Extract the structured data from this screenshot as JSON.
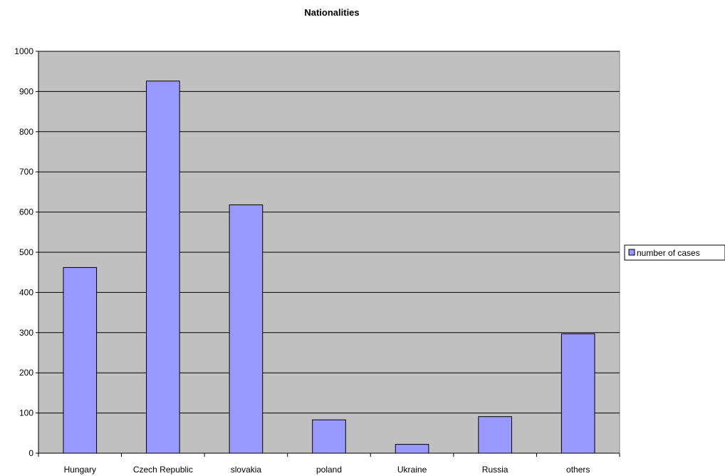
{
  "chart_data": {
    "type": "bar",
    "title": "Nationalities",
    "xlabel": "",
    "ylabel": "",
    "categories": [
      "Hungary",
      "Czech Republic",
      "slovakia",
      "poland",
      "Ukraine",
      "Russia",
      "others"
    ],
    "series": [
      {
        "name": "number of cases",
        "values": [
          462,
          926,
          618,
          83,
          22,
          91,
          297
        ]
      }
    ],
    "ylim": [
      0,
      1000
    ],
    "yticks": [
      0,
      100,
      200,
      300,
      400,
      500,
      600,
      700,
      800,
      900,
      1000
    ],
    "grid": true,
    "legend_position": "right",
    "colors": {
      "plot_background": "#c0c0c0",
      "bar_fill": "#9999ff",
      "bar_stroke": "#000000",
      "gridline": "#000000"
    }
  }
}
